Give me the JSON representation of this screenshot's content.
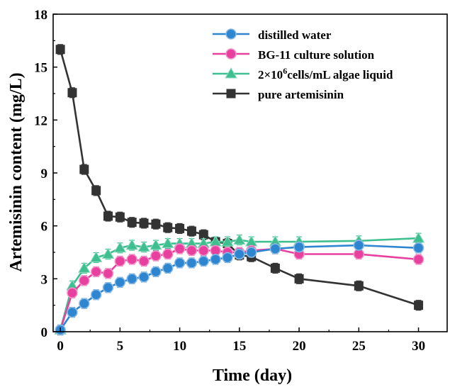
{
  "chart_data": {
    "type": "line",
    "xlabel": "Time (day)",
    "ylabel": "Artemisinin content (mg/L)",
    "xlim": [
      -0.6,
      32.4
    ],
    "ylim": [
      0,
      18
    ],
    "xticks": [
      0,
      5,
      10,
      15,
      20,
      25,
      30
    ],
    "yticks": [
      0,
      3,
      6,
      9,
      12,
      15,
      18
    ],
    "grid": false,
    "legend_position": "top-right",
    "series": [
      {
        "name": "distilled water",
        "color": "#2f86d0",
        "marker": "circle",
        "x": [
          0,
          1,
          2,
          3,
          4,
          5,
          6,
          7,
          8,
          9,
          10,
          11,
          12,
          13,
          14,
          15,
          16,
          18,
          20,
          25,
          30
        ],
        "y": [
          0.1,
          1.1,
          1.6,
          2.1,
          2.5,
          2.8,
          3.0,
          3.1,
          3.4,
          3.6,
          3.9,
          3.9,
          4.0,
          4.1,
          4.2,
          4.4,
          4.5,
          4.7,
          4.8,
          4.9,
          4.75
        ]
      },
      {
        "name": "BG-11 culture solution",
        "color": "#e8409e",
        "marker": "circle",
        "x": [
          0,
          1,
          2,
          3,
          4,
          5,
          6,
          7,
          8,
          9,
          10,
          11,
          12,
          13,
          14,
          15,
          16,
          18,
          20,
          25,
          30
        ],
        "y": [
          0.1,
          2.2,
          2.9,
          3.4,
          3.3,
          4.0,
          4.1,
          4.0,
          4.3,
          4.4,
          4.7,
          4.6,
          4.6,
          4.6,
          4.5,
          4.5,
          4.6,
          4.7,
          4.4,
          4.4,
          4.1
        ]
      },
      {
        "name": "2×10^6cells/mL algae liquid",
        "color": "#3fbf8f",
        "marker": "triangle",
        "x": [
          0,
          1,
          2,
          3,
          4,
          5,
          6,
          7,
          8,
          9,
          10,
          11,
          12,
          13,
          14,
          15,
          16,
          18,
          20,
          25,
          30
        ],
        "y": [
          0.1,
          2.6,
          3.6,
          4.2,
          4.4,
          4.75,
          4.9,
          4.8,
          4.9,
          5.0,
          5.0,
          5.0,
          5.0,
          5.1,
          5.1,
          5.2,
          5.1,
          5.1,
          5.1,
          5.15,
          5.3
        ]
      },
      {
        "name": "pure artemisinin",
        "color": "#333333",
        "marker": "square",
        "x": [
          0,
          1,
          2,
          3,
          4,
          5,
          6,
          7,
          8,
          9,
          10,
          11,
          12,
          13,
          14,
          15,
          16,
          18,
          20,
          25,
          30
        ],
        "y": [
          16.0,
          13.55,
          9.2,
          8.0,
          6.55,
          6.5,
          6.2,
          6.15,
          6.1,
          5.9,
          5.85,
          5.7,
          5.5,
          5.1,
          5.0,
          4.35,
          4.25,
          3.6,
          3.0,
          2.6,
          1.5
        ]
      }
    ],
    "error_bars": true
  },
  "legend": {
    "entries": [
      {
        "text": "distilled water"
      },
      {
        "text_main": "BG-11 culture solution"
      },
      {
        "prefix": "2×10",
        "sup": "6",
        "suffix": "cells/mL algae liquid"
      },
      {
        "text": "pure artemisinin"
      }
    ]
  }
}
